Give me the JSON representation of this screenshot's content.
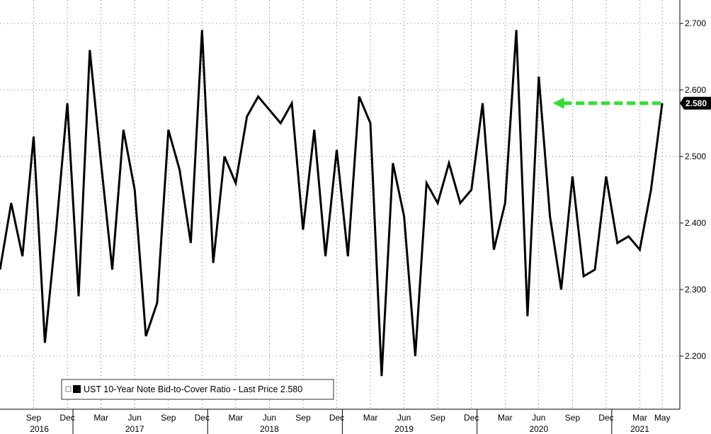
{
  "chart_data": {
    "type": "line",
    "title": "",
    "xlabel": "",
    "ylabel": "",
    "ylim": [
      2.13,
      2.73
    ],
    "yticks": [
      "2.700",
      "2.600",
      "2.500",
      "2.400",
      "2.300",
      "2.200"
    ],
    "x_month_ticks": [
      {
        "date": "2016-09",
        "label": "Sep"
      },
      {
        "date": "2016-12",
        "label": "Dec"
      },
      {
        "date": "2017-03",
        "label": "Mar"
      },
      {
        "date": "2017-06",
        "label": "Jun"
      },
      {
        "date": "2017-09",
        "label": "Sep"
      },
      {
        "date": "2017-12",
        "label": "Dec"
      },
      {
        "date": "2018-03",
        "label": "Mar"
      },
      {
        "date": "2018-06",
        "label": "Jun"
      },
      {
        "date": "2018-09",
        "label": "Sep"
      },
      {
        "date": "2018-12",
        "label": "Dec"
      },
      {
        "date": "2019-03",
        "label": "Mar"
      },
      {
        "date": "2019-06",
        "label": "Jun"
      },
      {
        "date": "2019-09",
        "label": "Sep"
      },
      {
        "date": "2019-12",
        "label": "Dec"
      },
      {
        "date": "2020-03",
        "label": "Mar"
      },
      {
        "date": "2020-06",
        "label": "Jun"
      },
      {
        "date": "2020-09",
        "label": "Sep"
      },
      {
        "date": "2020-12",
        "label": "Dec"
      },
      {
        "date": "2021-03",
        "label": "Mar"
      },
      {
        "date": "2021-05",
        "label": "May"
      }
    ],
    "x_year_labels": [
      {
        "date": "2016-09",
        "label": "2016"
      },
      {
        "date": "2017-06",
        "label": "2017"
      },
      {
        "date": "2018-06",
        "label": "2018"
      },
      {
        "date": "2019-06",
        "label": "2019"
      },
      {
        "date": "2020-06",
        "label": "2020"
      },
      {
        "date": "2021-03",
        "label": "2021"
      }
    ],
    "series": [
      {
        "name": "UST 10-Year Note Bid-to-Cover Ratio - Last Price 2.580",
        "color": "#000000",
        "x": [
          "2016-06",
          "2016-07",
          "2016-08",
          "2016-09",
          "2016-10",
          "2016-11",
          "2016-12",
          "2017-01",
          "2017-02",
          "2017-03",
          "2017-04",
          "2017-05",
          "2017-06",
          "2017-07",
          "2017-08",
          "2017-09",
          "2017-10",
          "2017-11",
          "2017-12",
          "2018-01",
          "2018-02",
          "2018-03",
          "2018-04",
          "2018-05",
          "2018-06",
          "2018-07",
          "2018-08",
          "2018-09",
          "2018-10",
          "2018-11",
          "2018-12",
          "2019-01",
          "2019-02",
          "2019-03",
          "2019-04",
          "2019-05",
          "2019-06",
          "2019-07",
          "2019-08",
          "2019-09",
          "2019-10",
          "2019-11",
          "2019-12",
          "2020-01",
          "2020-02",
          "2020-03",
          "2020-04",
          "2020-05",
          "2020-06",
          "2020-07",
          "2020-08",
          "2020-09",
          "2020-10",
          "2020-11",
          "2020-12",
          "2021-01",
          "2021-02",
          "2021-03",
          "2021-04",
          "2021-05"
        ],
        "values": [
          2.33,
          2.43,
          2.35,
          2.53,
          2.22,
          2.39,
          2.58,
          2.29,
          2.66,
          2.49,
          2.33,
          2.54,
          2.45,
          2.23,
          2.28,
          2.54,
          2.48,
          2.37,
          2.69,
          2.34,
          2.5,
          2.46,
          2.56,
          2.59,
          2.57,
          2.55,
          2.58,
          2.39,
          2.54,
          2.35,
          2.51,
          2.35,
          2.59,
          2.55,
          2.17,
          2.49,
          2.41,
          2.2,
          2.46,
          2.43,
          2.49,
          2.43,
          2.45,
          2.58,
          2.36,
          2.43,
          2.69,
          2.26,
          2.62,
          2.41,
          2.3,
          2.47,
          2.32,
          2.33,
          2.47,
          2.37,
          2.38,
          2.36,
          2.45,
          2.58
        ]
      }
    ],
    "last_price": "2.580",
    "last_price_color": "#000000",
    "annotation_arrow": {
      "color": "#33dd33",
      "level": 2.58,
      "from": "2021-05",
      "to": "2020-07"
    },
    "grid": true,
    "legend_position": "bottom-left"
  }
}
